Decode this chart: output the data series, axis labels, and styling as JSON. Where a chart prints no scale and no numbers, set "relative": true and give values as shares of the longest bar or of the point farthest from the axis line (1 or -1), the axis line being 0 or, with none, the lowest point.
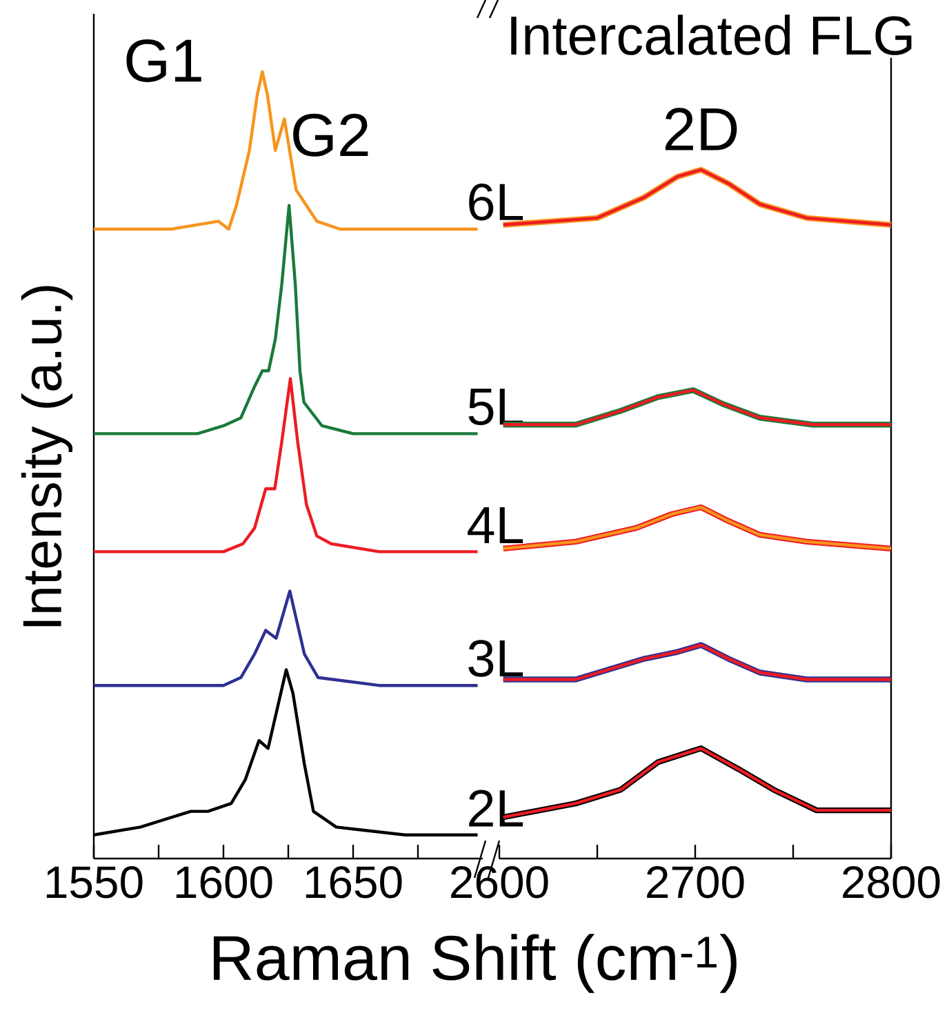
{
  "chart_data": [
    {
      "type": "line",
      "relative": true,
      "xlim": [
        1550,
        1700
      ],
      "xticks": [
        1550,
        {
          "value": 1575,
          "label": null
        },
        1600,
        {
          "value": 1625,
          "label": null
        },
        1650,
        {
          "value": 1675,
          "label": null
        }
      ],
      "tick_labels": "x",
      "xlabel": "Raman Shift (cm$^{-1}$)",
      "ylabel": "Intensity (a.u.)",
      "annotations": [
        {
          "text": "G1",
          "x": 1615,
          "y": 1.0
        },
        {
          "text": "G2",
          "x": 1623.5,
          "y": 0.94
        }
      ],
      "series": [
        {
          "name": "6L",
          "color": "#f7941d",
          "x": [
            1550,
            1580,
            1598,
            1602,
            1605,
            1610,
            1613,
            1615,
            1617,
            1620,
            1623.5,
            1626,
            1628,
            1632,
            1636,
            1645,
            1660,
            1698
          ],
          "values": [
            0.8,
            0.8,
            0.81,
            0.8,
            0.83,
            0.9,
            0.97,
            1.0,
            0.97,
            0.9,
            0.94,
            0.89,
            0.85,
            0.83,
            0.81,
            0.8,
            0.8,
            0.8
          ]
        },
        {
          "name": "5L",
          "color": "#1a7a3a",
          "x": [
            1550,
            1590,
            1600,
            1606.7,
            1612,
            1615,
            1617.4,
            1620,
            1622.5,
            1625.3,
            1627.7,
            1629.5,
            1631,
            1638,
            1650,
            1698
          ],
          "values": [
            0.54,
            0.54,
            0.55,
            0.56,
            0.6,
            0.62,
            0.62,
            0.66,
            0.73,
            0.83,
            0.73,
            0.62,
            0.58,
            0.55,
            0.54,
            0.54
          ]
        },
        {
          "name": "4L",
          "color": "#ed1c24",
          "x": [
            1550,
            1600,
            1607.5,
            1612,
            1616.3,
            1619.8,
            1622.5,
            1625.8,
            1628.6,
            1632,
            1636,
            1641.6,
            1660,
            1698
          ],
          "values": [
            0.39,
            0.39,
            0.4,
            0.42,
            0.47,
            0.47,
            0.53,
            0.61,
            0.53,
            0.45,
            0.41,
            0.4,
            0.39,
            0.39
          ]
        },
        {
          "name": "3L",
          "color": "#2e3192",
          "x": [
            1550,
            1600,
            1606.7,
            1612,
            1616.3,
            1620.3,
            1625.6,
            1631.2,
            1636.5,
            1660,
            1698
          ],
          "values": [
            0.22,
            0.22,
            0.23,
            0.26,
            0.29,
            0.28,
            0.34,
            0.26,
            0.23,
            0.22,
            0.22
          ]
        },
        {
          "name": "2L",
          "color": "#000000",
          "x": [
            1550,
            1568,
            1587.4,
            1594,
            1603,
            1608.4,
            1613.7,
            1617.2,
            1620.7,
            1624.2,
            1626.8,
            1631.2,
            1634.7,
            1643.5,
            1670,
            1698
          ],
          "values": [
            0.03,
            0.04,
            0.06,
            0.06,
            0.07,
            0.1,
            0.15,
            0.14,
            0.19,
            0.24,
            0.21,
            0.12,
            0.06,
            0.04,
            0.03,
            0.03
          ]
        }
      ]
    },
    {
      "type": "line",
      "relative": true,
      "xlim": [
        2600,
        2800
      ],
      "xticks": [
        2600,
        {
          "value": 2650,
          "label": null
        },
        2700,
        {
          "value": 2750,
          "label": null
        },
        2800
      ],
      "tick_labels": "x",
      "title": "Intercalated FLG",
      "annotations": [
        {
          "text": "2D",
          "x": 2703,
          "y": 1.0
        }
      ],
      "series": [
        {
          "color": "#f7941d",
          "x": [
            2602,
            2650,
            2674,
            2691,
            2703,
            2717,
            2733,
            2757,
            2800
          ],
          "values": [
            0.92,
            0.93,
            0.96,
            0.99,
            1.0,
            0.98,
            0.95,
            0.93,
            0.92
          ]
        },
        {
          "color": "#ed1c24",
          "x": [
            2602,
            2650,
            2674,
            2691,
            2703,
            2717,
            2733,
            2757,
            2800
          ],
          "values": [
            0.92,
            0.93,
            0.96,
            0.99,
            1.0,
            0.98,
            0.95,
            0.93,
            0.92
          ]
        },
        {
          "color": "#1a7a3a",
          "x": [
            2602,
            2639,
            2662,
            2681,
            2699,
            2714,
            2733,
            2760,
            2800
          ],
          "values": [
            0.63,
            0.63,
            0.65,
            0.67,
            0.68,
            0.66,
            0.64,
            0.63,
            0.63
          ]
        },
        {
          "color": "#ed1c24",
          "x": [
            2602,
            2639,
            2662,
            2681,
            2699,
            2714,
            2733,
            2760,
            2800
          ],
          "values": [
            0.63,
            0.63,
            0.65,
            0.67,
            0.68,
            0.66,
            0.64,
            0.63,
            0.63
          ]
        },
        {
          "color": "#ed1c24",
          "x": [
            2602,
            2639,
            2670,
            2688,
            2703,
            2717,
            2733,
            2757,
            2800
          ],
          "values": [
            0.45,
            0.46,
            0.48,
            0.5,
            0.51,
            0.49,
            0.47,
            0.46,
            0.45
          ]
        },
        {
          "color": "#f7941d",
          "x": [
            2602,
            2639,
            2670,
            2688,
            2703,
            2717,
            2733,
            2757,
            2800
          ],
          "values": [
            0.45,
            0.46,
            0.48,
            0.5,
            0.51,
            0.49,
            0.47,
            0.46,
            0.45
          ]
        },
        {
          "color": "#2e3192",
          "x": [
            2602,
            2639,
            2674,
            2691,
            2703,
            2717,
            2733,
            2757,
            2800
          ],
          "values": [
            0.26,
            0.26,
            0.29,
            0.3,
            0.31,
            0.29,
            0.27,
            0.26,
            0.26
          ]
        },
        {
          "color": "#ed1c24",
          "x": [
            2602,
            2639,
            2674,
            2691,
            2703,
            2717,
            2733,
            2757,
            2800
          ],
          "values": [
            0.26,
            0.26,
            0.29,
            0.3,
            0.31,
            0.29,
            0.27,
            0.26,
            0.26
          ]
        },
        {
          "color": "#000000",
          "x": [
            2602,
            2639,
            2662,
            2681,
            2703,
            2722,
            2740,
            2762,
            2800
          ],
          "values": [
            0.06,
            0.08,
            0.1,
            0.14,
            0.16,
            0.13,
            0.1,
            0.07,
            0.07
          ]
        },
        {
          "color": "#ed1c24",
          "x": [
            2602,
            2639,
            2662,
            2681,
            2703,
            2722,
            2740,
            2762,
            2800
          ],
          "values": [
            0.06,
            0.08,
            0.1,
            0.14,
            0.16,
            0.13,
            0.1,
            0.07,
            0.07
          ]
        }
      ]
    }
  ]
}
